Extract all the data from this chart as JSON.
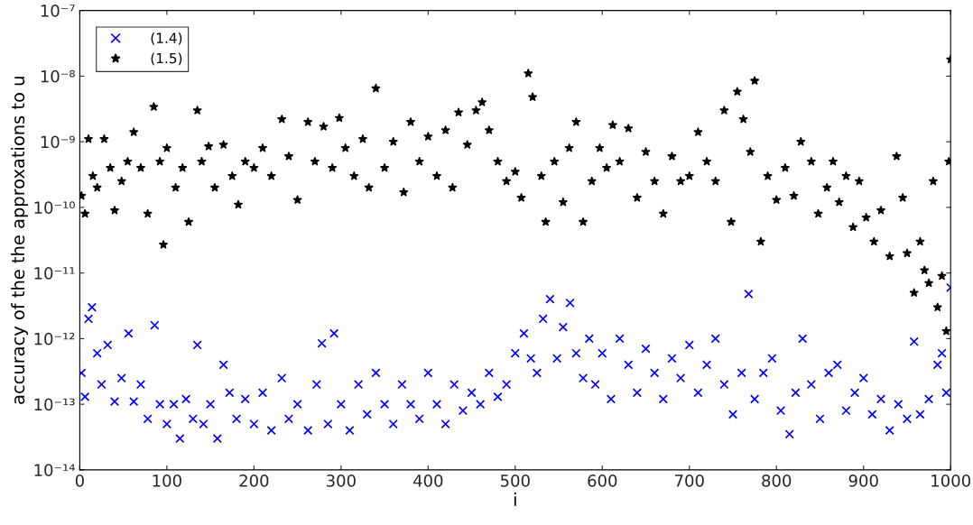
{
  "chart_data": {
    "type": "scatter",
    "xlabel": "i",
    "ylabel": "accuracy of the the approxations to u",
    "log": "y",
    "grid": false,
    "legend": "top left",
    "xlim": [
      0,
      1000
    ],
    "xticks": [
      0,
      100,
      200,
      300,
      400,
      500,
      600,
      700,
      800,
      900,
      1000
    ],
    "ylim": [
      1e-14,
      1e-07
    ],
    "yticks": [
      {
        "value": 1e-14,
        "label": "10⁻¹⁴"
      },
      {
        "value": 1e-13,
        "label": "10⁻¹³"
      },
      {
        "value": 1e-12,
        "label": "10⁻¹²"
      },
      {
        "value": 1e-11,
        "label": "10⁻¹¹"
      },
      {
        "value": 1e-10,
        "label": "10⁻¹⁰"
      },
      {
        "value": 1e-09,
        "label": "10⁻⁹"
      },
      {
        "value": 1e-08,
        "label": "10⁻⁸"
      },
      {
        "value": 1e-07,
        "label": "10⁻⁷"
      }
    ],
    "series": [
      {
        "name": "(1.4)",
        "color": "#0000ff",
        "marker": "cross",
        "x": [
          2,
          6,
          10,
          14,
          20,
          25,
          32,
          40,
          48,
          56,
          62,
          70,
          78,
          86,
          92,
          100,
          108,
          115,
          122,
          130,
          135,
          142,
          150,
          158,
          165,
          172,
          180,
          190,
          200,
          210,
          220,
          232,
          240,
          250,
          262,
          272,
          278,
          285,
          292,
          300,
          310,
          320,
          330,
          340,
          350,
          360,
          370,
          380,
          390,
          400,
          410,
          420,
          430,
          440,
          450,
          460,
          470,
          480,
          490,
          500,
          510,
          518,
          525,
          532,
          540,
          548,
          555,
          563,
          570,
          578,
          585,
          592,
          600,
          610,
          620,
          630,
          640,
          650,
          660,
          670,
          680,
          690,
          700,
          710,
          720,
          730,
          740,
          750,
          760,
          768,
          775,
          785,
          795,
          805,
          815,
          822,
          830,
          840,
          850,
          860,
          870,
          880,
          890,
          900,
          910,
          920,
          930,
          940,
          950,
          958,
          965,
          975,
          985,
          990,
          995,
          1000
        ],
        "values": [
          3e-13,
          1.3e-13,
          2e-12,
          3e-12,
          6e-13,
          2e-13,
          8e-13,
          1.1e-13,
          2.5e-13,
          1.2e-12,
          1.1e-13,
          2e-13,
          6e-14,
          1.6e-12,
          1e-13,
          5e-14,
          1e-13,
          3e-14,
          1.2e-13,
          6e-14,
          8e-13,
          5e-14,
          1e-13,
          3e-14,
          4e-13,
          1.5e-13,
          6e-14,
          1.2e-13,
          5e-14,
          1.5e-13,
          4e-14,
          2.5e-13,
          6e-14,
          1e-13,
          4e-14,
          2e-13,
          8.5e-13,
          5e-14,
          1.2e-12,
          1e-13,
          4e-14,
          2e-13,
          7e-14,
          3e-13,
          1e-13,
          5e-14,
          2e-13,
          1e-13,
          6e-14,
          3e-13,
          1e-13,
          5e-14,
          2e-13,
          8e-14,
          1.5e-13,
          1e-13,
          3e-13,
          1.3e-13,
          2e-13,
          6e-13,
          1.2e-12,
          5e-13,
          3e-13,
          2e-12,
          4e-12,
          5e-13,
          1.5e-12,
          3.5e-12,
          6e-13,
          2.5e-13,
          1e-12,
          2e-13,
          6e-13,
          1.2e-13,
          1e-12,
          4e-13,
          1.5e-13,
          7e-13,
          3e-13,
          1.2e-13,
          5e-13,
          2.5e-13,
          8e-13,
          1.5e-13,
          4e-13,
          1e-12,
          2e-13,
          7e-14,
          3e-13,
          4.8e-12,
          1.2e-13,
          3e-13,
          5e-13,
          8e-14,
          3.5e-14,
          1.5e-13,
          1e-12,
          2e-13,
          6e-14,
          3e-13,
          4e-13,
          8e-14,
          1.5e-13,
          2.5e-13,
          7e-14,
          1.2e-13,
          4e-14,
          1e-13,
          6e-14,
          9e-13,
          7e-14,
          1.2e-13,
          4e-13,
          6e-13,
          1.5e-13,
          6e-12
        ]
      },
      {
        "name": "(1.5)",
        "color": "#000000",
        "marker": "star",
        "x": [
          2,
          6,
          10,
          15,
          20,
          28,
          35,
          40,
          48,
          55,
          62,
          70,
          78,
          85,
          92,
          96,
          100,
          110,
          118,
          125,
          135,
          140,
          148,
          155,
          165,
          175,
          182,
          190,
          200,
          210,
          220,
          232,
          240,
          250,
          262,
          270,
          280,
          290,
          298,
          305,
          315,
          325,
          332,
          340,
          350,
          360,
          372,
          380,
          390,
          400,
          410,
          420,
          428,
          435,
          445,
          455,
          462,
          470,
          480,
          490,
          500,
          507,
          515,
          520,
          530,
          535,
          545,
          555,
          562,
          570,
          578,
          588,
          597,
          605,
          612,
          620,
          630,
          640,
          650,
          660,
          670,
          680,
          690,
          700,
          710,
          720,
          730,
          740,
          748,
          755,
          762,
          770,
          775,
          782,
          790,
          800,
          810,
          820,
          828,
          840,
          848,
          858,
          865,
          872,
          880,
          888,
          895,
          903,
          912,
          920,
          930,
          938,
          945,
          950,
          958,
          965,
          970,
          975,
          980,
          985,
          990,
          995,
          998,
          1000
        ],
        "values": [
          1.5e-10,
          8e-11,
          1.1e-09,
          3e-10,
          2e-10,
          1.1e-09,
          4e-10,
          9e-11,
          2.5e-10,
          5e-10,
          1.4e-09,
          4e-10,
          8e-11,
          3.4e-09,
          5e-10,
          2.7e-11,
          8e-10,
          2e-10,
          4e-10,
          6e-11,
          3e-09,
          5e-10,
          8.5e-10,
          2e-10,
          9e-10,
          3e-10,
          1.1e-10,
          5e-10,
          4e-10,
          8e-10,
          3e-10,
          2.2e-09,
          6e-10,
          1.3e-10,
          2e-09,
          5e-10,
          1.7e-09,
          4e-10,
          2.3e-09,
          8e-10,
          3e-10,
          1.1e-09,
          2e-10,
          6.5e-09,
          4e-10,
          1e-09,
          1.7e-10,
          2e-09,
          5e-10,
          1.2e-09,
          3e-10,
          1.5e-09,
          2e-10,
          2.8e-09,
          9e-10,
          3e-09,
          4e-09,
          1.5e-09,
          5e-10,
          2.5e-10,
          3.5e-10,
          1.4e-10,
          1.1e-08,
          4.8e-09,
          3e-10,
          6e-11,
          5e-10,
          1.2e-10,
          8e-10,
          2e-09,
          6e-11,
          2.5e-10,
          8e-10,
          4e-10,
          1.8e-09,
          5e-10,
          1.6e-09,
          1.4e-10,
          7e-10,
          2.5e-10,
          8e-11,
          6e-10,
          2.5e-10,
          3e-10,
          1.4e-09,
          5e-10,
          2.5e-10,
          3e-09,
          6e-11,
          5.8e-09,
          2.2e-09,
          7e-10,
          8.5e-09,
          3e-11,
          3e-10,
          1.3e-10,
          4e-10,
          1.5e-10,
          1e-09,
          5e-10,
          8e-11,
          2e-10,
          5e-10,
          1.2e-10,
          3e-10,
          5e-11,
          2.5e-10,
          7e-11,
          3e-11,
          9e-11,
          1.8e-11,
          6e-10,
          1.4e-10,
          2e-11,
          5e-12,
          3e-11,
          1.1e-11,
          7e-12,
          2.5e-10,
          3e-12,
          9e-12,
          1.3e-12,
          5e-10,
          1.8e-08
        ]
      }
    ]
  }
}
